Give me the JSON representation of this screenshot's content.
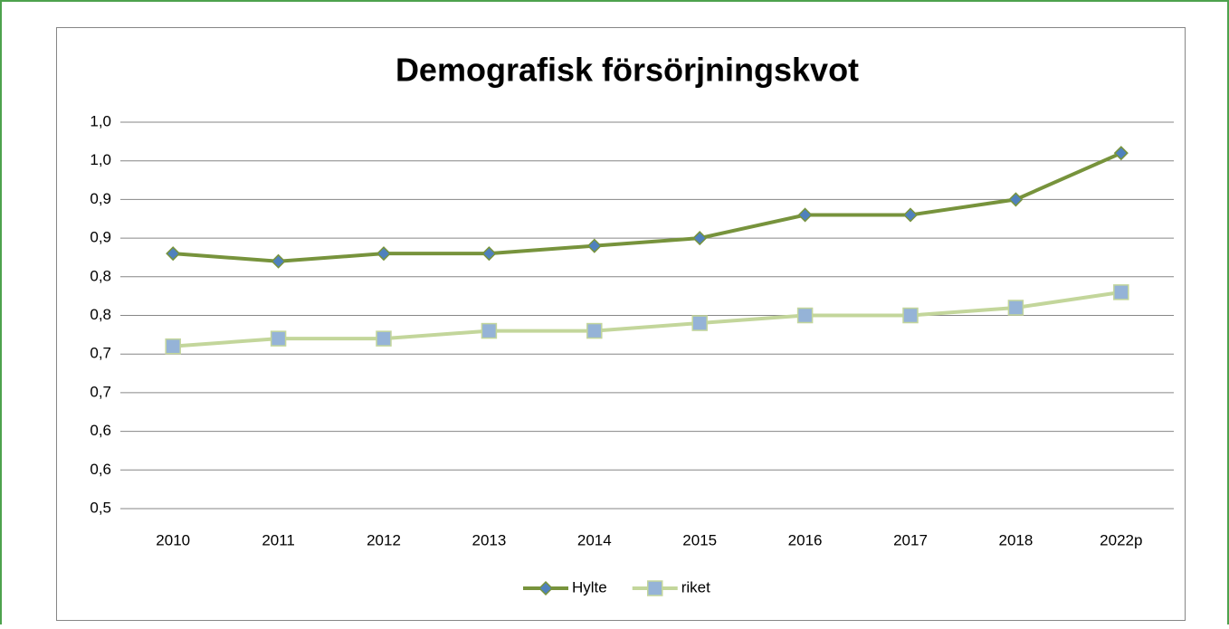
{
  "chart_data": {
    "type": "line",
    "title": "Demografisk försörjningskvot",
    "categories": [
      "2010",
      "2011",
      "2012",
      "2013",
      "2014",
      "2015",
      "2016",
      "2017",
      "2018",
      "2022p"
    ],
    "series": [
      {
        "name": "Hylte",
        "color": "#77933c",
        "marker": "diamond",
        "marker_color": "#4f81bd",
        "values": [
          0.83,
          0.82,
          0.83,
          0.83,
          0.84,
          0.85,
          0.88,
          0.88,
          0.9,
          0.96
        ]
      },
      {
        "name": "riket",
        "color": "#c3d69b",
        "marker": "square",
        "marker_color": "#95b3d7",
        "values": [
          0.71,
          0.72,
          0.72,
          0.73,
          0.73,
          0.74,
          0.75,
          0.75,
          0.76,
          0.78
        ]
      }
    ],
    "ylim": [
      0.5,
      1.0
    ],
    "yticks": [
      {
        "value": 0.5,
        "label": "0,5"
      },
      {
        "value": 0.55,
        "label": "0,6"
      },
      {
        "value": 0.6,
        "label": "0,6"
      },
      {
        "value": 0.65,
        "label": "0,7"
      },
      {
        "value": 0.7,
        "label": "0,7"
      },
      {
        "value": 0.75,
        "label": "0,8"
      },
      {
        "value": 0.8,
        "label": "0,8"
      },
      {
        "value": 0.85,
        "label": "0,9"
      },
      {
        "value": 0.9,
        "label": "0,9"
      },
      {
        "value": 0.95,
        "label": "1,0"
      },
      {
        "value": 1.0,
        "label": "1,0"
      }
    ],
    "grid": true,
    "legend": "bottom"
  }
}
